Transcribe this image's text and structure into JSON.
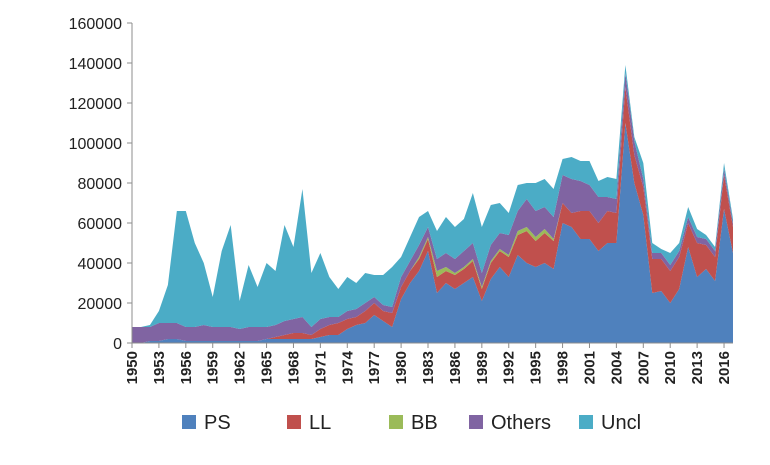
{
  "chart_data": {
    "type": "area",
    "stacked": true,
    "title": "",
    "xlabel": "",
    "ylabel": "",
    "ylim": [
      0,
      160000
    ],
    "yticks": [
      0,
      20000,
      40000,
      60000,
      80000,
      100000,
      120000,
      140000,
      160000
    ],
    "xlim": [
      1950,
      2017
    ],
    "xticks": [
      1950,
      1953,
      1956,
      1959,
      1962,
      1965,
      1968,
      1971,
      1974,
      1977,
      1980,
      1983,
      1986,
      1989,
      1992,
      1995,
      1998,
      2001,
      2004,
      2007,
      2010,
      2013,
      2016
    ],
    "grid": false,
    "legend_position": "bottom",
    "x": [
      1950,
      1951,
      1952,
      1953,
      1954,
      1955,
      1956,
      1957,
      1958,
      1959,
      1960,
      1961,
      1962,
      1963,
      1964,
      1965,
      1966,
      1967,
      1968,
      1969,
      1970,
      1971,
      1972,
      1973,
      1974,
      1975,
      1976,
      1977,
      1978,
      1979,
      1980,
      1981,
      1982,
      1983,
      1984,
      1985,
      1986,
      1987,
      1988,
      1989,
      1990,
      1991,
      1992,
      1993,
      1994,
      1995,
      1996,
      1997,
      1998,
      1999,
      2000,
      2001,
      2002,
      2003,
      2004,
      2005,
      2006,
      2007,
      2008,
      2009,
      2010,
      2011,
      2012,
      2013,
      2014,
      2015,
      2016,
      2017
    ],
    "series": [
      {
        "name": "PS",
        "color": "#4f81bd",
        "values": [
          0,
          0,
          1000,
          1000,
          2000,
          2000,
          1000,
          1000,
          1000,
          1000,
          1000,
          1000,
          1000,
          1000,
          1000,
          2000,
          2000,
          2000,
          2000,
          2000,
          2000,
          3000,
          4000,
          4000,
          7000,
          9000,
          10000,
          14000,
          11000,
          8000,
          22000,
          30000,
          36000,
          46000,
          25000,
          30000,
          27000,
          30000,
          33000,
          21000,
          32000,
          38000,
          33000,
          44000,
          40000,
          38000,
          40000,
          37000,
          60000,
          58000,
          52000,
          52000,
          46000,
          50000,
          50000,
          110000,
          80000,
          64000,
          25000,
          26000,
          20000,
          27000,
          48000,
          33000,
          37000,
          31000,
          67000,
          45000
        ]
      },
      {
        "name": "LL",
        "color": "#c0504d",
        "values": [
          0,
          0,
          0,
          0,
          0,
          0,
          0,
          0,
          0,
          0,
          0,
          0,
          0,
          0,
          0,
          0,
          1000,
          2000,
          3000,
          3000,
          2000,
          4000,
          5000,
          6000,
          5000,
          4000,
          6000,
          6000,
          5000,
          7000,
          6000,
          6000,
          6000,
          6000,
          8000,
          6000,
          7000,
          7000,
          8000,
          6000,
          8000,
          8000,
          10000,
          10000,
          16000,
          13000,
          15000,
          14000,
          10000,
          7000,
          14000,
          14000,
          14000,
          16000,
          15000,
          18000,
          14000,
          14000,
          17000,
          16000,
          16000,
          16000,
          12000,
          17000,
          12000,
          12000,
          17000,
          13000
        ]
      },
      {
        "name": "BB",
        "color": "#9bbb59",
        "values": [
          0,
          0,
          0,
          0,
          0,
          0,
          0,
          0,
          0,
          0,
          0,
          0,
          0,
          0,
          0,
          0,
          0,
          0,
          0,
          0,
          0,
          0,
          0,
          0,
          0,
          0,
          0,
          0,
          0,
          0,
          0,
          0,
          1000,
          1000,
          3000,
          2000,
          1000,
          1000,
          1000,
          1000,
          1000,
          1000,
          1000,
          2000,
          2000,
          2000,
          2000,
          1000,
          0,
          0,
          0,
          0,
          0,
          0,
          0,
          0,
          0,
          0,
          0,
          0,
          0,
          0,
          0,
          0,
          0,
          0,
          0,
          0
        ]
      },
      {
        "name": "Others",
        "color": "#8064a2",
        "values": [
          8000,
          8000,
          7000,
          9000,
          8000,
          8000,
          7000,
          7000,
          8000,
          7000,
          7000,
          7000,
          6000,
          7000,
          7000,
          6000,
          6000,
          7000,
          7000,
          8000,
          4000,
          5000,
          4000,
          3000,
          4000,
          4000,
          4000,
          3000,
          3000,
          3000,
          5000,
          5000,
          6000,
          5000,
          6000,
          7000,
          7000,
          8000,
          8000,
          7000,
          8000,
          8000,
          10000,
          10000,
          14000,
          13000,
          11000,
          11000,
          14000,
          17000,
          15000,
          13000,
          13000,
          7000,
          7000,
          7000,
          7000,
          4000,
          3000,
          3000,
          3000,
          3000,
          3000,
          3000,
          3000,
          3000,
          3000,
          2000
        ]
      },
      {
        "name": "Uncl",
        "color": "#4bacc6",
        "values": [
          0,
          0,
          1000,
          6000,
          19000,
          56000,
          58000,
          42000,
          31000,
          15000,
          38000,
          51000,
          14000,
          31000,
          20000,
          32000,
          27000,
          48000,
          36000,
          64000,
          27000,
          33000,
          20000,
          14000,
          17000,
          13000,
          15000,
          11000,
          15000,
          20000,
          10000,
          12000,
          14000,
          8000,
          14000,
          18000,
          16000,
          16000,
          25000,
          23000,
          20000,
          15000,
          11000,
          13000,
          8000,
          14000,
          14000,
          14000,
          8000,
          11000,
          10000,
          12000,
          8000,
          10000,
          10000,
          4000,
          2000,
          8000,
          5000,
          2000,
          6000,
          4000,
          5000,
          4000,
          2000,
          2000,
          3000,
          2000
        ]
      }
    ]
  }
}
